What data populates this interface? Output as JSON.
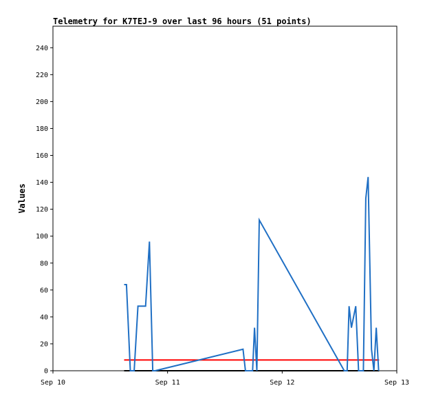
{
  "chart_data": {
    "type": "line",
    "title": "Telemetry for K7TEJ-9 over last 96 hours (51 points)",
    "ylabel": "Values",
    "xlabel": "",
    "ylim": [
      0,
      256
    ],
    "xlim": [
      0,
      72
    ],
    "y_ticks": [
      0,
      20,
      40,
      60,
      80,
      100,
      120,
      140,
      160,
      180,
      200,
      220,
      240
    ],
    "x_ticks": [
      {
        "x": 0,
        "label": "Sep 10"
      },
      {
        "x": 24,
        "label": "Sep 11"
      },
      {
        "x": 48,
        "label": "Sep 12"
      },
      {
        "x": 72,
        "label": "Sep 13"
      }
    ],
    "series": [
      {
        "color": "#1f6fc4",
        "points": [
          [
            14.9,
            64
          ],
          [
            15.4,
            64
          ],
          [
            16.2,
            0
          ],
          [
            17.0,
            0
          ],
          [
            17.8,
            48
          ],
          [
            19.4,
            48
          ],
          [
            20.2,
            96
          ],
          [
            20.9,
            0
          ],
          [
            21.4,
            0
          ],
          [
            39.8,
            16
          ],
          [
            40.3,
            0
          ],
          [
            41.8,
            0
          ],
          [
            42.2,
            32
          ],
          [
            42.7,
            0
          ],
          [
            43.2,
            112
          ],
          [
            61.0,
            0
          ],
          [
            61.6,
            0
          ],
          [
            62.0,
            48
          ],
          [
            62.5,
            32
          ],
          [
            63.4,
            48
          ],
          [
            64.0,
            0
          ],
          [
            65.0,
            0
          ],
          [
            65.5,
            128
          ],
          [
            66.0,
            144
          ],
          [
            66.7,
            16
          ],
          [
            67.2,
            0
          ],
          [
            67.7,
            32
          ],
          [
            68.2,
            0
          ]
        ]
      },
      {
        "color": "#ff0000",
        "points": [
          [
            14.9,
            8
          ],
          [
            68.3,
            8
          ]
        ]
      },
      {
        "color": "#000000",
        "points": [
          [
            14.9,
            0
          ],
          [
            68.3,
            0
          ]
        ]
      }
    ]
  }
}
